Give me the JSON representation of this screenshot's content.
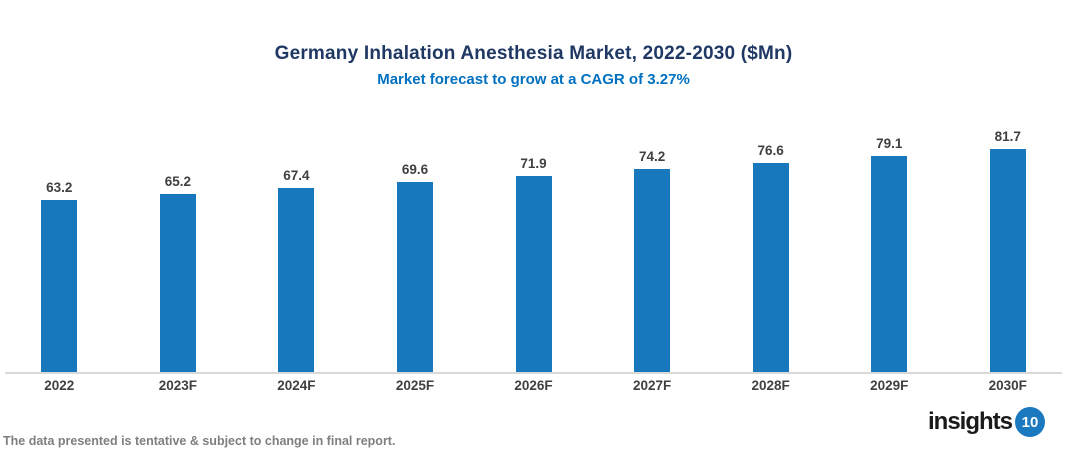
{
  "chart_data": {
    "type": "bar",
    "title": "Germany Inhalation Anesthesia Market, 2022-2030 ($Mn)",
    "subtitle": "Market forecast to grow at a CAGR of 3.27%",
    "categories": [
      "2022",
      "2023F",
      "2024F",
      "2025F",
      "2026F",
      "2027F",
      "2028F",
      "2029F",
      "2030F"
    ],
    "values": [
      63.2,
      65.2,
      67.4,
      69.6,
      71.9,
      74.2,
      76.6,
      79.1,
      81.7
    ],
    "value_labels_shown": true,
    "grid": false,
    "legend": "none",
    "y_axis_visible": false,
    "bar_color": "#1878BE"
  },
  "footer": {
    "note": "The data presented is tentative & subject to change in final report.",
    "logo_text": "insights",
    "logo_badge": "10"
  },
  "colors": {
    "title": "#1F3864",
    "subtitle": "#0070C0",
    "bar": "#1878BE",
    "data_label": "#404040",
    "axis_line": "#D9D9D9",
    "footer_note": "#7F7F7F",
    "logo_text": "#1A1A1A",
    "logo_badge": "#1B79C0"
  }
}
